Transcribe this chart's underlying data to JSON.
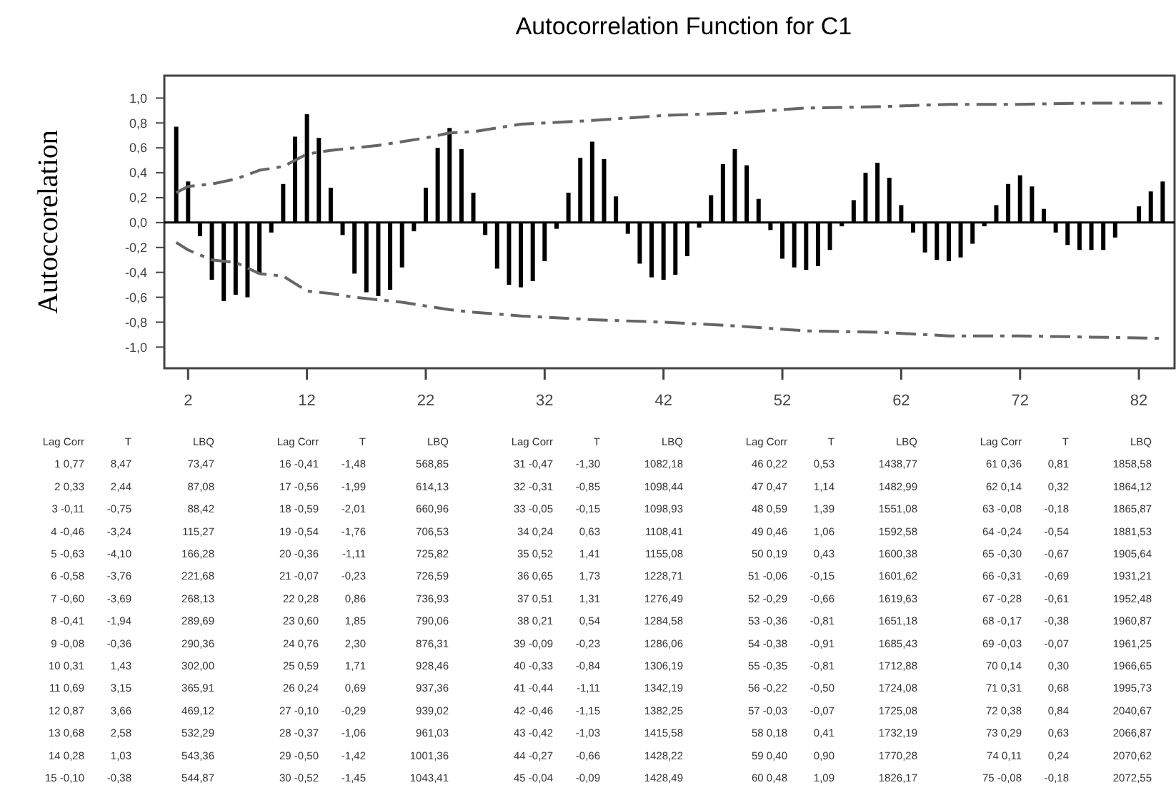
{
  "chart_data": [
    {
      "type": "bar",
      "title": "Autocorrelation Function for C1",
      "ylabel": "Autoccorelation",
      "xlim": [
        0,
        85
      ],
      "xticks": [
        2,
        12,
        22,
        32,
        42,
        52,
        62,
        72,
        82
      ],
      "ylim": [
        -1.17,
        1.18
      ],
      "yticks": [
        {
          "value": -1,
          "label": "-1,0"
        },
        {
          "value": -0.8,
          "label": "-0,8"
        },
        {
          "value": -0.6,
          "label": "-0,6"
        },
        {
          "value": -0.4,
          "label": "-0,4"
        },
        {
          "value": -0.2,
          "label": "-0,2"
        },
        {
          "value": 0,
          "label": "0,0"
        },
        {
          "value": 0.2,
          "label": "0,2"
        },
        {
          "value": 0.4,
          "label": "0,4"
        },
        {
          "value": 0.6,
          "label": "0,6"
        },
        {
          "value": 0.8,
          "label": "0,8"
        },
        {
          "value": 1,
          "label": "1,0"
        }
      ],
      "line_style": "dashed",
      "x": [
        1,
        2,
        3,
        4,
        5,
        6,
        7,
        8,
        9,
        10,
        11,
        12,
        13,
        14,
        15,
        16,
        17,
        18,
        19,
        20,
        21,
        22,
        23,
        24,
        25,
        26,
        27,
        28,
        29,
        30,
        31,
        32,
        33,
        34,
        35,
        36,
        37,
        38,
        39,
        40,
        41,
        42,
        43,
        44,
        45,
        46,
        47,
        48,
        49,
        50,
        51,
        52,
        53,
        54,
        55,
        56,
        57,
        58,
        59,
        60,
        61,
        62,
        63,
        64,
        65,
        66,
        67,
        68,
        69,
        70,
        71,
        72,
        73,
        74,
        75,
        76,
        77,
        78,
        79,
        80,
        81,
        82,
        83,
        84
      ],
      "series": [
        {
          "type": "bar",
          "color": "#000000",
          "values": [
            0.77,
            0.33,
            -0.11,
            -0.46,
            -0.63,
            -0.58,
            -0.6,
            -0.41,
            -0.08,
            0.31,
            0.69,
            0.87,
            0.68,
            0.28,
            -0.1,
            -0.41,
            -0.56,
            -0.59,
            -0.54,
            -0.36,
            -0.07,
            0.28,
            0.6,
            0.76,
            0.59,
            0.24,
            -0.1,
            -0.37,
            -0.5,
            -0.52,
            -0.47,
            -0.31,
            -0.05,
            0.24,
            0.52,
            0.65,
            0.51,
            0.21,
            -0.09,
            -0.33,
            -0.44,
            -0.46,
            -0.42,
            -0.27,
            -0.04,
            0.22,
            0.47,
            0.59,
            0.46,
            0.19,
            -0.06,
            -0.29,
            -0.36,
            -0.38,
            -0.35,
            -0.22,
            -0.03,
            0.18,
            0.4,
            0.48,
            0.36,
            0.14,
            -0.08,
            -0.24,
            -0.3,
            -0.31,
            -0.28,
            -0.17,
            -0.03,
            0.14,
            0.31,
            0.38,
            0.29,
            0.11,
            -0.08,
            -0.18,
            -0.22,
            -0.22,
            -0.22,
            -0.12,
            0,
            0.13,
            0.25,
            0.33
          ]
        },
        {
          "type": "line",
          "color": "#666666",
          "x": [
            1,
            2,
            4,
            6,
            8,
            10,
            12,
            14,
            16,
            18,
            20,
            22,
            24,
            26,
            30,
            36,
            42,
            48,
            54,
            60,
            66,
            72,
            78,
            84
          ],
          "values": [
            0.24,
            0.29,
            0.31,
            0.35,
            0.42,
            0.45,
            0.55,
            0.58,
            0.6,
            0.62,
            0.65,
            0.68,
            0.72,
            0.73,
            0.79,
            0.82,
            0.86,
            0.88,
            0.92,
            0.93,
            0.95,
            0.95,
            0.96,
            0.96
          ]
        },
        {
          "type": "line",
          "color": "#666666",
          "x": [
            1,
            2,
            4,
            6,
            8,
            10,
            12,
            14,
            16,
            18,
            20,
            22,
            24,
            26,
            30,
            36,
            42,
            48,
            54,
            60,
            66,
            72,
            78,
            84
          ],
          "values": [
            -0.16,
            -0.22,
            -0.3,
            -0.32,
            -0.41,
            -0.43,
            -0.55,
            -0.57,
            -0.6,
            -0.62,
            -0.64,
            -0.67,
            -0.7,
            -0.72,
            -0.75,
            -0.78,
            -0.8,
            -0.83,
            -0.87,
            -0.88,
            -0.91,
            -0.91,
            -0.92,
            -0.93
          ]
        }
      ]
    },
    {
      "type": "other",
      "annotations": [
        "Lag Corr T LBQ",
        "1 0,77 8,47 73,47",
        "2 0,33 2,44 87,08",
        "3 -0,11 -0,75 88,42",
        "4 -0,46 -3,24 115,27",
        "5 -0,63 -4,10 166,28",
        "6 -0,58 -3,76 221,68",
        "7 -0,60 -3,69 268,13",
        "8 -0,41 -1,94 289,69",
        "9 -0,08 -0,36 290,36",
        "10 0,31 1,43 302,00",
        "11 0,69 3,15 365,91",
        "12 0,87 3,66 469,12",
        "13 0,68 2,58 532,29",
        "14 0,28 1,03 543,36",
        "15 -0,10 -0,38 544,87",
        "Lag Corr T LBQ",
        "16 -0,41 -1,48 568,85",
        "17 -0,56 -1,99 614,13",
        "18 -0,59 -2,01 660,96",
        "19 -0,54 -1,76 706,53",
        "20 -0,36 -1,11 725,82",
        "21 -0,07 -0,23 726,59",
        "22 0,28 0,86 736,93",
        "23 0,60 1,85 790,06",
        "24 0,76 2,30 876,31",
        "25 0,59 1,71 928,46",
        "26 0,24 0,69 937,36",
        "27 -0,10 -0,29 939,02",
        "28 -0,37 -1,06 961,03",
        "29 -0,50 -1,42 1001,36",
        "30 -0,52 -1,45 1043,41",
        "Lag Corr T LBQ",
        "31 -0,47 -1,30 1082,18",
        "32 -0,31 -0,85 1098,44",
        "33 -0,05 -0,15 1098,93",
        "34 0,24 0,63 1108,41",
        "35 0,52 1,41 1155,08",
        "36 0,65 1,73 1228,71",
        "37 0,51 1,31 1276,49",
        "38 0,21 0,54 1284,58",
        "39 -0,09 -0,23 1286,06",
        "40 -0,33 -0,84 1306,19",
        "41 -0,44 -1,11 1342,19",
        "42 -0,46 -1,15 1382,25",
        "43 -0,42 -1,03 1415,58",
        "44 -0,27 -0,66 1428,22",
        "45 -0,04 -0,09 1428,49",
        "Lag Corr T LBQ",
        "46 0,22 0,53 1438,77",
        "47 0,47 1,14 1482,99",
        "48 0,59 1,39 1551,08",
        "49 0,46 1,06 1592,58",
        "50 0,19 0,43 1600,38",
        "51 -0,06 -0,15 1601,62",
        "52 -0,29 -0,66 1619,63",
        "53 -0,36 -0,81 1651,18",
        "54 -0,38 -0,91 1685,43",
        "55 -0,35 -0,81 1712,88",
        "56 -0,22 -0,50 1724,08",
        "57 -0,03 -0,07 1725,08",
        "58 0,18 0,41 1732,19",
        "59 0,40 0,90 1770,28",
        "60 0,48 1,09 1826,17",
        "Lag Corr T LBQ",
        "61 0,36 0,81 1858,58",
        "62 0,14 0,32 1864,12",
        "63 -0,08 -0,18 1865,87",
        "64 -0,24 -0,54 1881,53",
        "65 -0,30 -0,67 1905,64",
        "66 -0,31 -0,69 1931,21",
        "67 -0,28 -0,61 1952,48",
        "68 -0,17 -0,38 1960,87",
        "69 -0,03 -0,07 1961,25",
        "70 0,14 0,30 1966,65",
        "71 0,31 0,68 1995,73",
        "72 0,38 0,84 2040,67",
        "73 0,29 0,63 2066,87",
        "74 0,11 0,24 2070,62",
        "75 -0,08 -0,18 2072,55"
      ]
    }
  ]
}
